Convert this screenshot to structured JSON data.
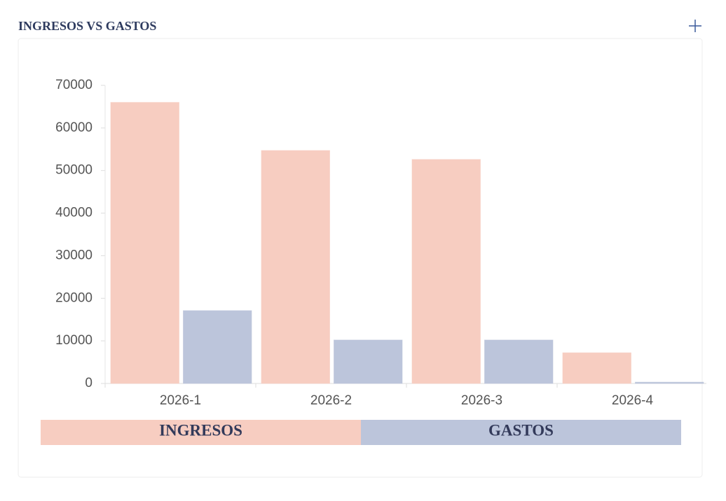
{
  "chart_data": {
    "type": "bar",
    "title": "INGRESOS VS GASTOS",
    "categories": [
      "2026-1",
      "2026-2",
      "2026-3",
      "2026-4"
    ],
    "series": [
      {
        "name": "INGRESOS",
        "color": "#f7cdc1",
        "values": [
          66000,
          54700,
          52600,
          7200
        ]
      },
      {
        "name": "GASTOS",
        "color": "#bcc5db",
        "values": [
          17100,
          10200,
          10200,
          300
        ]
      }
    ],
    "ylim": [
      0,
      70000
    ],
    "yticks": [
      0,
      10000,
      20000,
      30000,
      40000,
      50000,
      60000,
      70000
    ]
  }
}
